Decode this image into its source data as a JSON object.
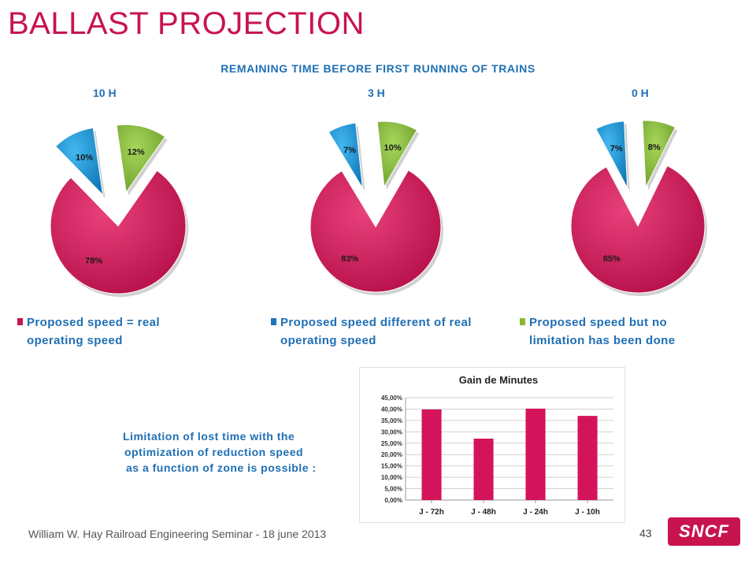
{
  "slide": {
    "title": "BALLAST PROJECTION",
    "subtitle": "REMAINING   TIME BEFORE FIRST RUNNING OF TRAINS",
    "limitation_lines": [
      "Limitation of lost time with the",
      "optimization of reduction speed",
      "as a function of zone is possible :"
    ],
    "footer": "William W. Hay Railroad Engineering Seminar - 18 june 2013",
    "page_number": "43",
    "logo": "SNCF"
  },
  "legend": [
    {
      "label": "Proposed  speed  =  real operating  speed",
      "color": "#c8144e"
    },
    {
      "label": "Proposed  speed  different  of real  operating  speed",
      "color": "#1e73be"
    },
    {
      "label": "Proposed  speed  but  no limitation  has  been  done",
      "color": "#8ab832"
    }
  ],
  "colors": {
    "red": "#d4145a",
    "blue": "#1e9ee0",
    "green": "#8dc63f",
    "accent_text": "#1f6fb4",
    "title": "#c8144e"
  },
  "chart_data": [
    {
      "type": "pie",
      "title": "10 H",
      "slices": [
        {
          "label": "78%",
          "value": 78,
          "color": "#d4145a"
        },
        {
          "label": "10%",
          "value": 10,
          "color": "#1e9ee0"
        },
        {
          "label": "12%",
          "value": 12,
          "color": "#8dc63f"
        }
      ]
    },
    {
      "type": "pie",
      "title": "3 H",
      "slices": [
        {
          "label": "83%",
          "value": 83,
          "color": "#d4145a"
        },
        {
          "label": "7%",
          "value": 7,
          "color": "#1e9ee0"
        },
        {
          "label": "10%",
          "value": 10,
          "color": "#8dc63f"
        }
      ]
    },
    {
      "type": "pie",
      "title": "0 H",
      "slices": [
        {
          "label": "85%",
          "value": 85,
          "color": "#d4145a"
        },
        {
          "label": "7%",
          "value": 7,
          "color": "#1e9ee0"
        },
        {
          "label": "8%",
          "value": 8,
          "color": "#8dc63f"
        }
      ]
    },
    {
      "type": "bar",
      "title": "Gain de Minutes",
      "categories": [
        "J - 72h",
        "J - 48h",
        "J - 24h",
        "J - 10h"
      ],
      "values": [
        39.8,
        27.0,
        40.2,
        37.0
      ],
      "ylim": [
        0,
        45
      ],
      "yticks": [
        "0,00%",
        "5,00%",
        "10,00%",
        "15,00%",
        "20,00%",
        "25,00%",
        "30,00%",
        "35,00%",
        "40,00%",
        "45,00%"
      ],
      "grid": true,
      "color": "#d4145a"
    }
  ]
}
